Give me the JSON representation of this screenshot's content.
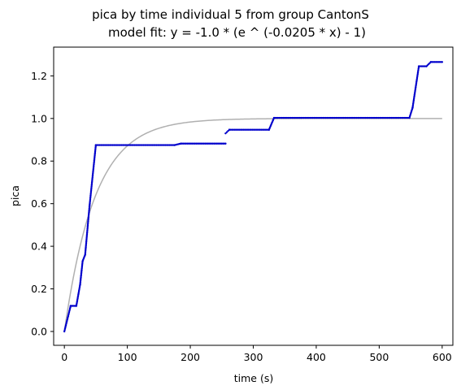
{
  "chart_data": {
    "type": "scatter",
    "title": "pica by time individual 5 from group CantonS",
    "subtitle": "model fit: y = -1.0 * (e ^ (-0.0205 * x) - 1)",
    "xlabel": "time (s)",
    "ylabel": "pica",
    "xlim": [
      -17,
      617
    ],
    "ylim": [
      -0.065,
      1.335
    ],
    "xticks": [
      0,
      100,
      200,
      300,
      400,
      500,
      600
    ],
    "yticks": [
      0.0,
      0.2,
      0.4,
      0.6,
      0.8,
      1.0,
      1.2
    ],
    "grid": false,
    "colors": {
      "data": "#0000cc",
      "fit": "#b0b0b0"
    },
    "fit": {
      "a": -1.0,
      "b": -0.0205,
      "x_range": [
        0,
        600
      ]
    },
    "series": [
      {
        "kind": "points",
        "segments": [
          [
            [
              0,
              0.0
            ],
            [
              10,
              0.12
            ]
          ],
          [
            [
              10,
              0.12
            ],
            [
              19,
              0.12
            ]
          ],
          [
            [
              19,
              0.12
            ],
            [
              25,
              0.22
            ]
          ],
          [
            [
              25,
              0.22
            ],
            [
              29,
              0.33
            ]
          ],
          [
            [
              29,
              0.33
            ],
            [
              33,
              0.36
            ]
          ],
          [
            [
              33,
              0.36
            ],
            [
              40,
              0.59
            ]
          ],
          [
            [
              40,
              0.59
            ],
            [
              50,
              0.875
            ]
          ],
          [
            [
              50,
              0.875
            ],
            [
              175,
              0.875
            ]
          ],
          [
            [
              175,
              0.875
            ],
            [
              185,
              0.882
            ]
          ],
          [
            [
              185,
              0.882
            ],
            [
              256,
              0.882
            ]
          ],
          [
            [
              256,
              0.93
            ],
            [
              262,
              0.947
            ]
          ],
          [
            [
              262,
              0.947
            ],
            [
              325,
              0.947
            ]
          ],
          [
            [
              325,
              0.947
            ],
            [
              333,
              1.003
            ]
          ],
          [
            [
              333,
              1.003
            ],
            [
              548,
              1.003
            ]
          ],
          [
            [
              548,
              1.003
            ],
            [
              553,
              1.05
            ]
          ],
          [
            [
              553,
              1.05
            ],
            [
              563,
              1.245
            ]
          ],
          [
            [
              563,
              1.245
            ],
            [
              575,
              1.245
            ]
          ],
          [
            [
              575,
              1.245
            ],
            [
              582,
              1.265
            ]
          ],
          [
            [
              582,
              1.265
            ],
            [
              600,
              1.265
            ]
          ]
        ]
      }
    ]
  }
}
